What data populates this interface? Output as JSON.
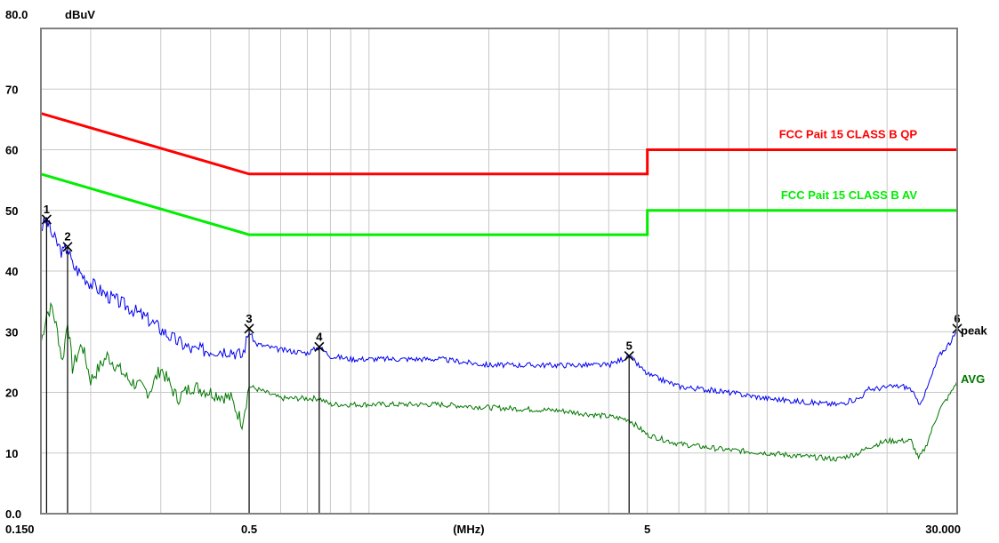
{
  "chart_data": {
    "type": "line",
    "title": "",
    "y_unit": "dBuV",
    "x_unit": "(MHz)",
    "x_scale": "log",
    "xlim": [
      0.15,
      30
    ],
    "ylim": [
      0,
      80
    ],
    "y_ticks": [
      "0.0",
      "10",
      "20",
      "30",
      "40",
      "50",
      "60",
      "70",
      "80.0"
    ],
    "x_ticks": [
      "0.150",
      "0.5",
      "5",
      "30.000"
    ],
    "grid": true,
    "legend": "inline labels at right",
    "series": [
      {
        "name": "FCC Pait 15 CLASS B QP",
        "kind": "limit",
        "color": "#ff0000",
        "points": [
          [
            0.15,
            66
          ],
          [
            0.5,
            56
          ],
          [
            5,
            56
          ],
          [
            5,
            60
          ],
          [
            30,
            60
          ]
        ]
      },
      {
        "name": "FCC Pait 15 CLASS B AV",
        "kind": "limit",
        "color": "#00ee00",
        "points": [
          [
            0.15,
            56
          ],
          [
            0.5,
            46
          ],
          [
            5,
            46
          ],
          [
            5,
            50
          ],
          [
            30,
            50
          ]
        ]
      },
      {
        "name": "peak",
        "kind": "measurement",
        "color": "#0000ee",
        "points": [
          [
            0.15,
            47
          ],
          [
            0.155,
            48.5
          ],
          [
            0.16,
            46
          ],
          [
            0.17,
            43
          ],
          [
            0.175,
            44
          ],
          [
            0.18,
            41
          ],
          [
            0.2,
            38
          ],
          [
            0.22,
            36
          ],
          [
            0.25,
            34
          ],
          [
            0.28,
            32
          ],
          [
            0.32,
            29
          ],
          [
            0.36,
            27
          ],
          [
            0.4,
            27
          ],
          [
            0.45,
            27
          ],
          [
            0.48,
            26
          ],
          [
            0.5,
            30
          ],
          [
            0.52,
            28
          ],
          [
            0.6,
            27
          ],
          [
            0.7,
            26.5
          ],
          [
            0.75,
            27.5
          ],
          [
            0.8,
            26
          ],
          [
            0.9,
            25.5
          ],
          [
            1.0,
            25.5
          ],
          [
            1.5,
            25.5
          ],
          [
            2,
            24.5
          ],
          [
            3,
            24.5
          ],
          [
            4,
            24.5
          ],
          [
            4.5,
            26
          ],
          [
            5,
            23
          ],
          [
            6,
            21
          ],
          [
            8,
            20
          ],
          [
            10,
            19
          ],
          [
            12,
            18.5
          ],
          [
            15,
            18
          ],
          [
            17,
            19
          ],
          [
            18,
            20.5
          ],
          [
            21,
            21
          ],
          [
            22,
            21
          ],
          [
            23,
            20.5
          ],
          [
            24,
            18
          ],
          [
            25,
            20
          ],
          [
            27,
            26
          ],
          [
            29,
            28.5
          ],
          [
            30,
            30
          ]
        ]
      },
      {
        "name": "AVG",
        "kind": "measurement",
        "color": "#007700",
        "points": [
          [
            0.15,
            28
          ],
          [
            0.155,
            33
          ],
          [
            0.16,
            34
          ],
          [
            0.165,
            30
          ],
          [
            0.17,
            25
          ],
          [
            0.175,
            32
          ],
          [
            0.18,
            24
          ],
          [
            0.19,
            28
          ],
          [
            0.2,
            22
          ],
          [
            0.22,
            26
          ],
          [
            0.25,
            22
          ],
          [
            0.28,
            20
          ],
          [
            0.3,
            24
          ],
          [
            0.33,
            19
          ],
          [
            0.36,
            21
          ],
          [
            0.4,
            20
          ],
          [
            0.45,
            19
          ],
          [
            0.48,
            15
          ],
          [
            0.5,
            21
          ],
          [
            0.55,
            20
          ],
          [
            0.6,
            19
          ],
          [
            0.7,
            19
          ],
          [
            0.75,
            19
          ],
          [
            0.8,
            18
          ],
          [
            0.9,
            18
          ],
          [
            1.0,
            18
          ],
          [
            1.5,
            18
          ],
          [
            2,
            17.5
          ],
          [
            3,
            17
          ],
          [
            4,
            16
          ],
          [
            4.5,
            15.5
          ],
          [
            5,
            13
          ],
          [
            6,
            11.5
          ],
          [
            8,
            10.5
          ],
          [
            10,
            10
          ],
          [
            12,
            9.5
          ],
          [
            15,
            9
          ],
          [
            17,
            10
          ],
          [
            18,
            11
          ],
          [
            20,
            12
          ],
          [
            22,
            12
          ],
          [
            23,
            12
          ],
          [
            24,
            9
          ],
          [
            25,
            11
          ],
          [
            27,
            17
          ],
          [
            29,
            20
          ],
          [
            30,
            22
          ]
        ]
      }
    ],
    "markers": [
      {
        "label": "1",
        "x": 0.155,
        "y": 48.5
      },
      {
        "label": "2",
        "x": 0.175,
        "y": 44
      },
      {
        "label": "3",
        "x": 0.5,
        "y": 30.5
      },
      {
        "label": "4",
        "x": 0.75,
        "y": 27.5
      },
      {
        "label": "5",
        "x": 4.5,
        "y": 26
      },
      {
        "label": "6",
        "x": 30,
        "y": 30.5
      }
    ]
  }
}
